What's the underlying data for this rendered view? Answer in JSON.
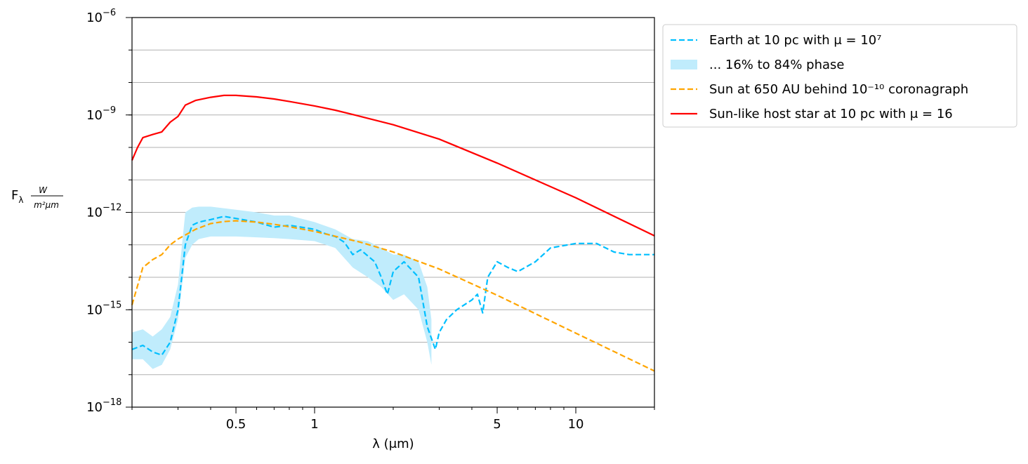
{
  "chart_data": {
    "type": "line",
    "xlabel": "λ (μm)",
    "ylabel": "F_λ W/(m²μm)",
    "x_scale": "log",
    "y_scale": "log",
    "xlim": [
      0.2,
      20
    ],
    "ylim": [
      1e-18,
      1e-06
    ],
    "grid": "horizontal",
    "legend_position": "outside-right",
    "x_ticks": [
      {
        "value": 0.5,
        "label": "0.5"
      },
      {
        "value": 1,
        "label": "1"
      },
      {
        "value": 5,
        "label": "5"
      },
      {
        "value": 10,
        "label": "10"
      }
    ],
    "y_ticks": [
      {
        "value": 1e-18,
        "base": "10",
        "exp": "−18"
      },
      {
        "value": 1e-15,
        "base": "10",
        "exp": "−15"
      },
      {
        "value": 1e-12,
        "base": "10",
        "exp": "−12"
      },
      {
        "value": 1e-09,
        "base": "10",
        "exp": "−9"
      },
      {
        "value": 1e-06,
        "base": "10",
        "exp": "−6"
      }
    ],
    "series": [
      {
        "name": "Sun-like host star at 10 pc with μ = 16",
        "color": "#ff0000",
        "style": "solid",
        "x": [
          0.2,
          0.21,
          0.22,
          0.24,
          0.26,
          0.28,
          0.3,
          0.32,
          0.35,
          0.4,
          0.45,
          0.5,
          0.6,
          0.7,
          0.8,
          1.0,
          1.2,
          1.5,
          2.0,
          3.0,
          5.0,
          10.0,
          20.0
        ],
        "y": [
          4e-11,
          1e-10,
          2e-10,
          2.5e-10,
          3e-10,
          6e-10,
          9e-10,
          2e-09,
          2.8e-09,
          3.5e-09,
          4e-09,
          4e-09,
          3.6e-09,
          3.1e-09,
          2.6e-09,
          1.9e-09,
          1.4e-09,
          9e-10,
          5e-10,
          1.8e-10,
          3.3e-11,
          2.8e-12,
          1.9e-13
        ]
      },
      {
        "name": "Earth at 10 pc with μ = 10⁷",
        "color": "#00bfff",
        "style": "dashed",
        "x": [
          0.2,
          0.22,
          0.24,
          0.26,
          0.28,
          0.3,
          0.31,
          0.32,
          0.34,
          0.36,
          0.4,
          0.45,
          0.5,
          0.6,
          0.7,
          0.8,
          1.0,
          1.1,
          1.2,
          1.3,
          1.4,
          1.5,
          1.7,
          1.8,
          1.9,
          2.0,
          2.2,
          2.5,
          2.7,
          2.9,
          3.0,
          3.2,
          3.5,
          4.0,
          4.2,
          4.4,
          4.6,
          5.0,
          5.5,
          6.0,
          7.0,
          8.0,
          10.0,
          12.0,
          14.0,
          16.0,
          20.0
        ],
        "y": [
          6e-17,
          8e-17,
          5e-17,
          4e-17,
          1e-16,
          1e-15,
          1e-14,
          1e-13,
          4e-13,
          5e-13,
          6e-13,
          7.5e-13,
          6.5e-13,
          5e-13,
          3.5e-13,
          4e-13,
          3e-13,
          2.2e-13,
          1.8e-13,
          1.2e-13,
          5e-14,
          7e-14,
          3e-14,
          1e-14,
          3e-15,
          1.5e-14,
          3e-14,
          1e-14,
          3e-16,
          6e-17,
          2e-16,
          5e-16,
          1e-15,
          2e-15,
          3e-15,
          8e-16,
          1e-14,
          3e-14,
          2e-14,
          1.5e-14,
          3e-14,
          8e-14,
          1.1e-13,
          1.1e-13,
          6e-14,
          5e-14,
          5e-14
        ]
      },
      {
        "name": "... 16% to 84% phase",
        "color": "#c0ecfc",
        "style": "band",
        "x": [
          0.2,
          0.22,
          0.24,
          0.26,
          0.28,
          0.3,
          0.32,
          0.34,
          0.36,
          0.4,
          0.5,
          0.6,
          0.7,
          0.8,
          1.0,
          1.2,
          1.4,
          1.6,
          1.8,
          2.0,
          2.2,
          2.5,
          2.7,
          2.8
        ],
        "y_low": [
          3e-17,
          3e-17,
          1.5e-17,
          2e-17,
          6e-17,
          5e-16,
          4e-14,
          1e-13,
          1.5e-13,
          1.8e-13,
          1.8e-13,
          1.7e-13,
          1.6e-13,
          1.5e-13,
          1.3e-13,
          8e-14,
          2e-14,
          1e-14,
          5e-15,
          2e-15,
          3e-15,
          1e-15,
          1e-16,
          2e-17
        ],
        "y_high": [
          2e-16,
          2.5e-16,
          1.5e-16,
          2.5e-16,
          6e-16,
          6e-15,
          1e-12,
          1.4e-12,
          1.5e-12,
          1.5e-12,
          1.2e-12,
          1e-12,
          8e-13,
          8e-13,
          5e-13,
          3e-13,
          1.5e-13,
          1.3e-13,
          8e-14,
          5e-14,
          5e-14,
          3e-14,
          5e-15,
          5e-16
        ]
      },
      {
        "name": "Sun at 650 AU behind 10⁻¹⁰ coronagraph",
        "color": "#ffa500",
        "style": "dashed",
        "x": [
          0.2,
          0.22,
          0.24,
          0.26,
          0.28,
          0.3,
          0.32,
          0.35,
          0.4,
          0.45,
          0.5,
          0.6,
          0.7,
          0.8,
          1.0,
          1.5,
          2.0,
          3.0,
          5.0,
          10.0,
          20.0
        ],
        "y": [
          1.4e-15,
          2e-14,
          3.5e-14,
          5e-14,
          1e-13,
          1.5e-13,
          2e-13,
          3e-13,
          4.5e-13,
          5.2e-13,
          5.5e-13,
          5e-13,
          4.3e-13,
          3.6e-13,
          2.6e-13,
          1.2e-13,
          6e-14,
          1.8e-14,
          2.8e-15,
          1.9e-16,
          1.3e-17
        ]
      }
    ],
    "legend": [
      {
        "label": "Earth at 10 pc with μ = 10⁷",
        "color": "#00bfff",
        "style": "dashed"
      },
      {
        "label": "... 16% to 84% phase",
        "color": "#c0ecfc",
        "style": "band"
      },
      {
        "label": "Sun at 650 AU behind 10⁻¹⁰ coronagraph",
        "color": "#ffa500",
        "style": "dashed"
      },
      {
        "label": "Sun-like host star at 10 pc with μ = 16",
        "color": "#ff0000",
        "style": "solid"
      }
    ]
  }
}
